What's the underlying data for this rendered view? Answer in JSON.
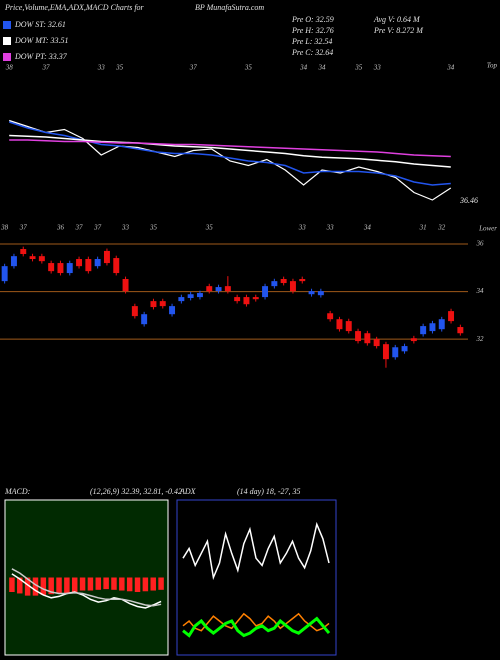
{
  "header": {
    "title": "Price,Volume,EMA,ADX,MACD Charts for",
    "site": "BP MunafaSutra.com"
  },
  "stats": [
    "Pre  O: 32.59",
    "Pre  H: 32.76",
    "Pre  L: 32.54",
    "Pre  C: 32.64",
    "Avg V: 0.64  M",
    "Pre  V: 8.272  M"
  ],
  "chart_data": [
    {
      "type": "line",
      "corner_label": "Top",
      "annotation": "36.46",
      "ylim": [
        30,
        40
      ],
      "categories": [
        "38",
        null,
        "37",
        null,
        null,
        "33",
        "35",
        null,
        null,
        null,
        "37",
        null,
        null,
        "35",
        null,
        null,
        "34",
        "34",
        null,
        "35",
        "33",
        null,
        null,
        null,
        "34"
      ],
      "price": {
        "color": "#ffffff",
        "values": [
          36.3,
          35.9,
          35.5,
          35.7,
          35.1,
          34.0,
          34.6,
          34.5,
          34.2,
          33.9,
          34.3,
          34.4,
          33.6,
          33.3,
          33.7,
          33.0,
          32.0,
          33.0,
          32.8,
          33.2,
          32.9,
          32.5,
          31.5,
          31.0,
          31.8
        ]
      },
      "series": [
        {
          "name": "DOW ST: 32.61",
          "color": "#2255ee",
          "values": [
            36.2,
            35.8,
            35.5,
            35.3,
            35.0,
            34.7,
            34.6,
            34.4,
            34.2,
            34.1,
            34.1,
            34.0,
            33.8,
            33.6,
            33.5,
            33.3,
            32.8,
            32.9,
            32.9,
            32.9,
            32.8,
            32.6,
            32.2,
            32.0,
            32.1
          ]
        },
        {
          "name": "DOW MT: 33.51",
          "color": "#ffffff",
          "values": [
            35.3,
            35.25,
            35.2,
            35.1,
            35.0,
            34.9,
            34.85,
            34.8,
            34.7,
            34.6,
            34.55,
            34.5,
            34.4,
            34.3,
            34.2,
            34.1,
            33.95,
            33.85,
            33.8,
            33.75,
            33.65,
            33.55,
            33.4,
            33.3,
            33.2
          ]
        },
        {
          "name": "DOW PT: 33.37",
          "color": "#e040e0",
          "values": [
            35.0,
            35.0,
            34.95,
            34.9,
            34.9,
            34.85,
            34.8,
            34.8,
            34.75,
            34.7,
            34.7,
            34.65,
            34.6,
            34.55,
            34.5,
            34.45,
            34.4,
            34.35,
            34.3,
            34.25,
            34.2,
            34.1,
            34.0,
            33.95,
            33.9
          ]
        }
      ]
    },
    {
      "type": "candlestick",
      "corner_label": "Lower",
      "ylim": [
        30.2,
        36.8
      ],
      "yticks": [
        32,
        34,
        36
      ],
      "up_color": "#2255ee",
      "down_color": "#ee1111",
      "grid_color": "#a05a1a",
      "categories": [
        "38",
        null,
        "37",
        null,
        null,
        null,
        "36",
        null,
        "37",
        null,
        "37",
        null,
        null,
        "33",
        null,
        null,
        "35",
        null,
        null,
        null,
        null,
        null,
        "35",
        null,
        null,
        null,
        null,
        null,
        null,
        null,
        null,
        null,
        "33",
        null,
        null,
        "33",
        null,
        null,
        null,
        "34",
        null,
        null,
        null,
        null,
        null,
        "31",
        null,
        "32",
        null,
        null
      ],
      "open": [
        34.44,
        35.07,
        35.79,
        35.49,
        35.49,
        35.2,
        35.2,
        34.78,
        35.37,
        35.37,
        35.07,
        35.71,
        35.41,
        34.53,
        33.39,
        32.63,
        33.6,
        33.6,
        33.05,
        33.6,
        33.73,
        33.77,
        34.23,
        34.02,
        34.23,
        33.77,
        33.77,
        33.77,
        33.77,
        34.23,
        34.53,
        34.44,
        34.53,
        33.89,
        33.85,
        33.09,
        32.84,
        32.76,
        32.34,
        32.25,
        32.0,
        31.79,
        31.24,
        31.49,
        32.04,
        32.21,
        32.34,
        32.42,
        33.18,
        32.51
      ],
      "close": [
        35.07,
        35.49,
        35.58,
        35.37,
        35.28,
        34.86,
        34.78,
        35.2,
        35.07,
        34.86,
        35.37,
        35.2,
        34.78,
        34.02,
        32.97,
        33.05,
        33.35,
        33.39,
        33.39,
        33.77,
        33.89,
        33.94,
        34.02,
        34.19,
        34.02,
        33.6,
        33.47,
        33.68,
        34.23,
        34.44,
        34.36,
        34.02,
        34.44,
        34.02,
        34.02,
        32.84,
        32.42,
        32.34,
        31.92,
        31.83,
        31.71,
        31.16,
        31.66,
        31.71,
        31.92,
        32.55,
        32.67,
        32.84,
        32.76,
        32.25
      ],
      "high": [
        35.17,
        35.59,
        35.89,
        35.59,
        35.59,
        35.3,
        35.3,
        35.3,
        35.47,
        35.47,
        35.47,
        35.81,
        35.51,
        34.63,
        33.49,
        33.15,
        33.7,
        33.7,
        33.49,
        33.87,
        33.99,
        34.04,
        34.33,
        34.29,
        34.65,
        33.87,
        33.87,
        33.87,
        34.33,
        34.54,
        34.63,
        34.54,
        34.63,
        34.12,
        34.12,
        33.19,
        32.94,
        32.86,
        32.44,
        32.35,
        32.1,
        31.89,
        31.76,
        31.81,
        32.14,
        32.65,
        32.77,
        32.94,
        33.28,
        32.61
      ],
      "low": [
        34.34,
        34.97,
        35.48,
        35.27,
        35.18,
        34.76,
        34.68,
        34.68,
        34.97,
        34.76,
        34.97,
        35.1,
        34.68,
        33.92,
        32.87,
        32.53,
        33.25,
        33.29,
        32.95,
        33.5,
        33.63,
        33.67,
        33.92,
        33.92,
        33.92,
        33.5,
        33.37,
        33.58,
        33.67,
        34.13,
        34.26,
        33.92,
        34.34,
        33.79,
        33.75,
        32.74,
        32.32,
        32.24,
        31.82,
        31.73,
        31.61,
        30.8,
        31.14,
        31.39,
        31.82,
        32.11,
        32.24,
        32.32,
        32.66,
        32.15
      ]
    },
    {
      "type": "line",
      "label": "MACD:",
      "title": "(12,26,9) 32.39, 32.81, -0.42",
      "ylim": [
        -1,
        1
      ],
      "series": [
        {
          "style": "bar",
          "color": "#ff2020",
          "values": [
            -0.2,
            -0.22,
            -0.25,
            -0.25,
            -0.24,
            -0.23,
            -0.22,
            -0.22,
            -0.2,
            -0.18,
            -0.18,
            -0.17,
            -0.16,
            -0.17,
            -0.18,
            -0.19,
            -0.2,
            -0.19,
            -0.18,
            -0.17
          ]
        },
        {
          "color": "#ffffff",
          "values": [
            0.05,
            -0.02,
            -0.1,
            -0.18,
            -0.24,
            -0.28,
            -0.26,
            -0.22,
            -0.2,
            -0.24,
            -0.3,
            -0.34,
            -0.32,
            -0.28,
            -0.3,
            -0.36,
            -0.4,
            -0.42,
            -0.38,
            -0.33
          ]
        },
        {
          "color": "#cccccc",
          "values": [
            0.12,
            0.06,
            -0.02,
            -0.1,
            -0.16,
            -0.2,
            -0.22,
            -0.22,
            -0.21,
            -0.22,
            -0.25,
            -0.28,
            -0.3,
            -0.3,
            -0.3,
            -0.32,
            -0.35,
            -0.38,
            -0.39,
            -0.37
          ]
        }
      ]
    },
    {
      "type": "line",
      "label": "ADX",
      "title": "(14 day) 18, -27, 35",
      "ylim": [
        0,
        60
      ],
      "series": [
        {
          "color": "#ffffff",
          "values": [
            38,
            42,
            35,
            40,
            45,
            30,
            36,
            48,
            40,
            33,
            44,
            50,
            38,
            35,
            42,
            47,
            36,
            40,
            45,
            38,
            34,
            41,
            52,
            46,
            36
          ]
        },
        {
          "color": "#ff8000",
          "values": [
            10,
            12,
            9,
            8,
            11,
            14,
            12,
            10,
            9,
            12,
            15,
            13,
            10,
            11,
            14,
            12,
            9,
            11,
            13,
            15,
            12,
            10,
            8,
            9,
            11
          ]
        },
        {
          "color": "#00ff00",
          "line_width": 3,
          "values": [
            8,
            6,
            10,
            12,
            9,
            7,
            9,
            11,
            12,
            8,
            6,
            7,
            9,
            10,
            8,
            9,
            12,
            10,
            8,
            7,
            9,
            11,
            13,
            10,
            7
          ]
        }
      ]
    }
  ]
}
